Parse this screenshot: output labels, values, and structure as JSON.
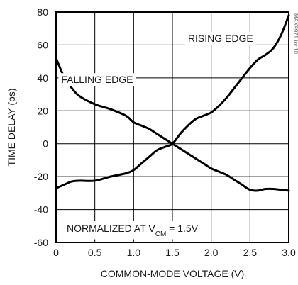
{
  "chart_data": {
    "type": "line",
    "xlabel": "COMMON-MODE VOLTAGE (V)",
    "ylabel": "TIME DELAY (ps)",
    "xlim": [
      0,
      3.0
    ],
    "ylim": [
      -60,
      80
    ],
    "x_ticks": [
      "0",
      "0.5",
      "1.0",
      "1.5",
      "2.0",
      "2.5",
      "3.0"
    ],
    "y_ticks": [
      "-60",
      "-40",
      "-20",
      "0",
      "20",
      "40",
      "60",
      "80"
    ],
    "grid": true,
    "watermark": "MAX9971 toc10",
    "annotation": {
      "prefix": "NORMALIZED AT V",
      "subscript": "CM",
      "suffix": " = 1.5V"
    },
    "series": [
      {
        "name": "RISING EDGE",
        "color": "#000000",
        "x": [
          0,
          0.1,
          0.2,
          0.3,
          0.5,
          0.7,
          0.9,
          1.0,
          1.1,
          1.2,
          1.3,
          1.4,
          1.5,
          1.6,
          1.7,
          1.8,
          1.9,
          2.0,
          2.1,
          2.2,
          2.3,
          2.4,
          2.5,
          2.6,
          2.7,
          2.8,
          2.9,
          3.0
        ],
        "y": [
          -27,
          -25,
          -23,
          -22.5,
          -22.5,
          -20,
          -18,
          -16,
          -12,
          -8,
          -4,
          -2,
          0,
          6,
          11,
          15,
          17,
          19,
          23,
          28,
          34,
          40,
          46,
          51,
          54,
          58,
          66,
          78
        ]
      },
      {
        "name": "FALLING EDGE",
        "color": "#000000",
        "x": [
          0,
          0.1,
          0.2,
          0.3,
          0.5,
          0.7,
          0.9,
          1.0,
          1.1,
          1.2,
          1.3,
          1.4,
          1.5,
          1.6,
          1.7,
          1.8,
          1.9,
          2.0,
          2.1,
          2.2,
          2.3,
          2.4,
          2.5,
          2.6,
          2.7,
          2.8,
          2.9,
          3.0
        ],
        "y": [
          52,
          41,
          34,
          29,
          24,
          21,
          17,
          13,
          11,
          9,
          6,
          3,
          0,
          -3,
          -6,
          -9,
          -12,
          -15,
          -17,
          -19,
          -22,
          -25,
          -28,
          -28.5,
          -27.5,
          -27.5,
          -28,
          -28.5
        ]
      }
    ],
    "series_labels": [
      {
        "series": "RISING EDGE",
        "x": 2.12,
        "y": 64
      },
      {
        "series": "FALLING EDGE",
        "x": 0.53,
        "y": 39
      }
    ]
  }
}
